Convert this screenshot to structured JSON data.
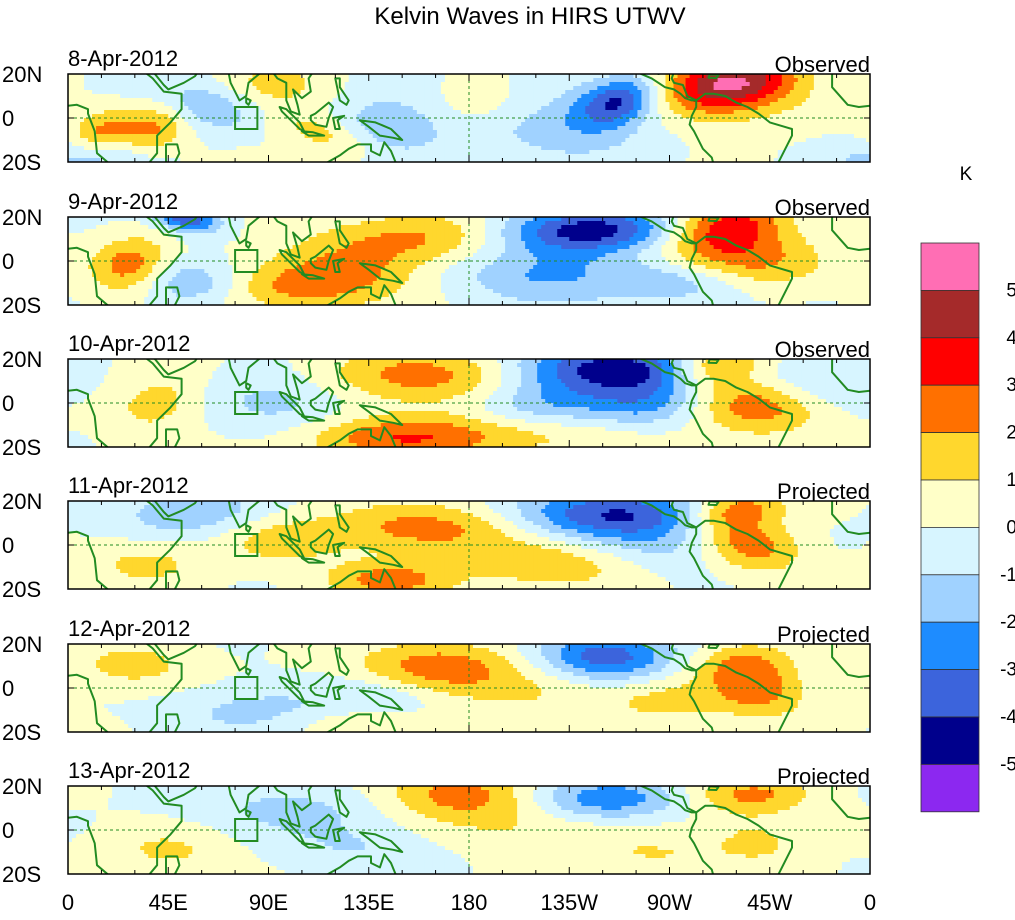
{
  "chart_data": {
    "type": "heatmap",
    "title": "Kelvin Waves in HIRS UTWV",
    "units": "K",
    "x_ticks": [
      "0",
      "45E",
      "90E",
      "135E",
      "180",
      "135W",
      "90W",
      "45W",
      "0"
    ],
    "y_ticks": [
      "20N",
      "0",
      "20S"
    ],
    "colorbar": {
      "labels": [
        "5",
        "4",
        "3",
        "2",
        "1",
        "0",
        "-1",
        "-2",
        "-3",
        "-4",
        "-5"
      ],
      "colors": [
        "#ff6eb4",
        "#a52a2a",
        "#ff0000",
        "#ff7000",
        "#ffd72d",
        "#ffffc8",
        "#d7f5ff",
        "#a0d2ff",
        "#1e8cff",
        "#3c64dc",
        "#00008c",
        "#8c28f0"
      ]
    },
    "panels": [
      {
        "date": "8-Apr-2012",
        "label": "Observed",
        "features": [
          [
            300,
            16,
            3,
            18,
            8,
            5.5
          ],
          [
            290,
            13,
            2.4,
            28,
            12,
            3
          ],
          [
            248,
            8,
            -4,
            12,
            8,
            5
          ],
          [
            40,
            -3,
            2.5,
            12,
            9,
            3
          ],
          [
            15,
            -7,
            2,
            10,
            7,
            2.5
          ],
          [
            117,
            -8,
            1.8,
            14,
            8,
            -12
          ],
          [
            145,
            -3,
            -2.2,
            20,
            10,
            1.5
          ],
          [
            215,
            0,
            -2.2,
            34,
            12,
            -3.5
          ],
          [
            185,
            4,
            2,
            25,
            9,
            3
          ],
          [
            60,
            6,
            -2.5,
            18,
            8,
            -2
          ],
          [
            90,
            14,
            1.5,
            20,
            8,
            3
          ],
          [
            10,
            -18,
            -1.5,
            20,
            6,
            2.5
          ]
        ]
      },
      {
        "date": "9-Apr-2012",
        "label": "Observed",
        "features": [
          [
            297,
            17,
            3.2,
            18,
            8,
            5
          ],
          [
            300,
            2,
            2.6,
            25,
            10,
            -4
          ],
          [
            235,
            14,
            -4.5,
            30,
            7,
            5
          ],
          [
            158,
            10,
            2.2,
            35,
            8,
            1
          ],
          [
            28,
            -2,
            2.6,
            12,
            9,
            2
          ],
          [
            53,
            20,
            -4,
            10,
            5,
            -7
          ],
          [
            215,
            -5,
            -2.2,
            28,
            10,
            2
          ],
          [
            105,
            -12,
            2.2,
            25,
            8,
            -3
          ],
          [
            130,
            -4,
            1.4,
            22,
            8,
            -2
          ],
          [
            275,
            -10,
            -1.8,
            22,
            7,
            -1.5
          ],
          [
            55,
            -10,
            -2,
            16,
            7,
            -2
          ]
        ]
      },
      {
        "date": "10-Apr-2012",
        "label": "Observed",
        "features": [
          [
            290,
            17,
            3,
            15,
            7,
            5.5
          ],
          [
            248,
            16,
            -4.5,
            30,
            8,
            -3
          ],
          [
            308,
            0,
            2.8,
            20,
            10,
            -3
          ],
          [
            160,
            12,
            2.4,
            32,
            9,
            -1
          ],
          [
            145,
            -16,
            2.3,
            30,
            7,
            -0.5
          ],
          [
            215,
            0,
            -2.2,
            22,
            9,
            3
          ],
          [
            260,
            0,
            -2,
            18,
            9,
            2
          ],
          [
            40,
            0,
            1.6,
            14,
            9,
            3
          ],
          [
            95,
            0,
            -1.5,
            22,
            9,
            -2.5
          ],
          [
            200,
            -14,
            1.6,
            40,
            7,
            -1
          ],
          [
            330,
            8,
            -1.2,
            22,
            8,
            -1.5
          ]
        ]
      },
      {
        "date": "11-Apr-2012",
        "label": "Projected",
        "features": [
          [
            245,
            14,
            -4.2,
            30,
            8,
            -1
          ],
          [
            160,
            8,
            2.4,
            30,
            8,
            2.5
          ],
          [
            305,
            0,
            2.8,
            16,
            9,
            -4
          ],
          [
            300,
            16,
            2.8,
            15,
            6,
            4
          ],
          [
            145,
            -16,
            2.4,
            20,
            6,
            -0.5
          ],
          [
            215,
            -8,
            1.8,
            30,
            8,
            -0.5
          ],
          [
            55,
            14,
            -1.8,
            25,
            8,
            1
          ],
          [
            95,
            3,
            1.5,
            20,
            8,
            -1
          ],
          [
            35,
            -8,
            1.3,
            20,
            8,
            -2
          ],
          [
            270,
            -2,
            -1.2,
            25,
            8,
            -3
          ]
        ]
      },
      {
        "date": "12-Apr-2012",
        "label": "Projected",
        "features": [
          [
            240,
            14,
            -3.8,
            22,
            8,
            -2
          ],
          [
            165,
            10,
            2.6,
            25,
            8,
            2.5
          ],
          [
            310,
            0,
            2.6,
            15,
            9,
            -2
          ],
          [
            300,
            12,
            1.6,
            15,
            6,
            3
          ],
          [
            210,
            0,
            1.2,
            30,
            9,
            0
          ],
          [
            85,
            -10,
            -1.3,
            28,
            8,
            -1
          ],
          [
            30,
            10,
            1.4,
            20,
            8,
            2
          ],
          [
            140,
            -5,
            -1.2,
            20,
            8,
            1
          ],
          [
            270,
            -6,
            1.2,
            20,
            8,
            2
          ],
          [
            135,
            -16,
            1.4,
            22,
            6,
            -1
          ]
        ]
      },
      {
        "date": "13-Apr-2012",
        "label": "Projected",
        "features": [
          [
            175,
            16,
            2.6,
            25,
            8,
            -3
          ],
          [
            240,
            14,
            -2.8,
            25,
            7,
            -1
          ],
          [
            305,
            16,
            2.2,
            20,
            6,
            1
          ],
          [
            100,
            10,
            -1.3,
            30,
            8,
            1
          ],
          [
            210,
            0,
            1,
            30,
            8,
            0
          ],
          [
            45,
            -10,
            1.2,
            20,
            8,
            -2
          ],
          [
            310,
            -4,
            1.2,
            15,
            8,
            -2
          ],
          [
            130,
            -8,
            -1,
            25,
            8,
            0
          ],
          [
            265,
            -12,
            1,
            25,
            7,
            1
          ]
        ]
      }
    ]
  }
}
